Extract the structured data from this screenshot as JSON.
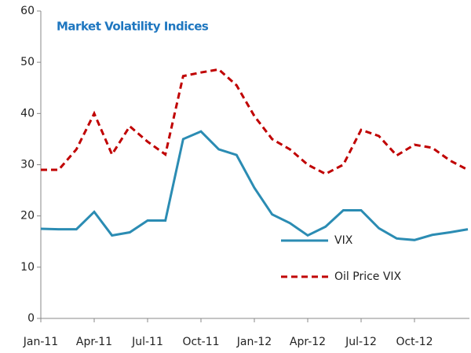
{
  "chart_data": {
    "type": "line",
    "title": "Market Volatility Indices",
    "categories": [
      "Jan-11",
      null,
      null,
      "Apr-11",
      null,
      null,
      "Jul-11",
      null,
      null,
      "Oct-11",
      null,
      null,
      "Jan-12",
      null,
      null,
      "Apr-12",
      null,
      null,
      "Jul-12",
      null,
      null,
      "Oct-12",
      null,
      null,
      null
    ],
    "series": [
      {
        "name": "VIX",
        "color": "#2b8cb3",
        "dashed": false,
        "values": [
          17.5,
          17.4,
          17.4,
          20.8,
          16.2,
          16.8,
          19.1,
          19.1,
          35,
          36.5,
          33,
          31.9,
          25.5,
          20.3,
          18.6,
          16.2,
          17.9,
          21.1,
          21.1,
          17.6,
          15.6,
          15.3,
          16.3,
          16.8,
          17.4
        ]
      },
      {
        "name": "Oil Price VIX",
        "color": "#c00000",
        "dashed": true,
        "values": [
          29,
          29,
          33,
          40,
          32,
          37.5,
          34.5,
          32,
          47.3,
          48,
          48.6,
          45.5,
          39.5,
          35,
          33,
          30,
          28.2,
          30,
          36.8,
          35.6,
          31.8,
          33.9,
          33.3,
          30.8,
          29
        ]
      }
    ],
    "ylim": [
      0,
      60
    ],
    "yticks": [
      0,
      10,
      20,
      30,
      40,
      50,
      60
    ],
    "grid": false
  }
}
